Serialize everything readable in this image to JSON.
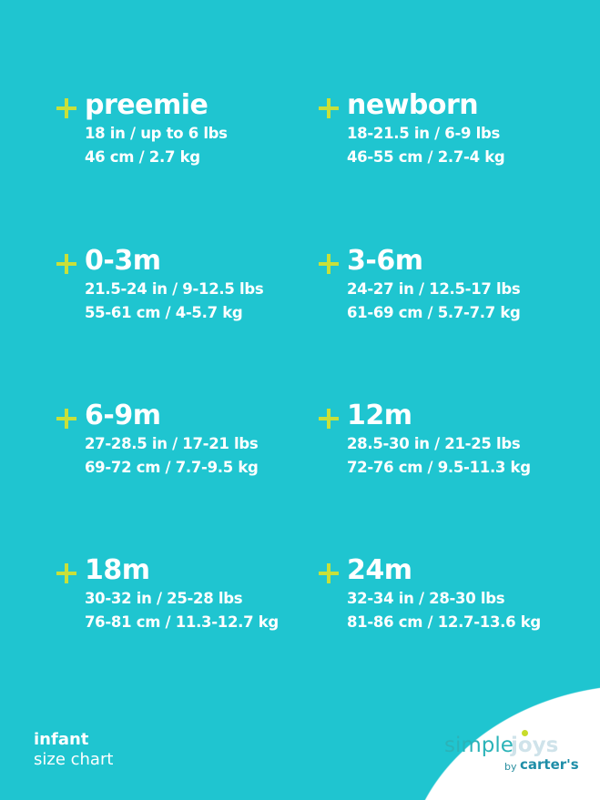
{
  "sizes": [
    {
      "label": "preemie",
      "imperial": "18 in / up to 6 lbs",
      "metric": "46 cm / 2.7 kg"
    },
    {
      "label": "newborn",
      "imperial": "18-21.5 in / 6-9 lbs",
      "metric": "46-55 cm / 2.7-4 kg"
    },
    {
      "label": "0-3m",
      "imperial": "21.5-24 in / 9-12.5 lbs",
      "metric": "55-61 cm / 4-5.7 kg"
    },
    {
      "label": "3-6m",
      "imperial": "24-27 in / 12.5-17 lbs",
      "metric": "61-69 cm / 5.7-7.7 kg"
    },
    {
      "label": "6-9m",
      "imperial": "27-28.5 in / 17-21 lbs",
      "metric": "69-72 cm / 7.7-9.5 kg"
    },
    {
      "label": "12m",
      "imperial": "28.5-30 in / 21-25 lbs",
      "metric": "72-76 cm / 9.5-11.3 kg"
    },
    {
      "label": "18m",
      "imperial": "30-32 in / 25-28 lbs",
      "metric": "76-81 cm / 11.3-12.7 kg"
    },
    {
      "label": "24m",
      "imperial": "32-34 in / 28-30 lbs",
      "metric": "81-86 cm / 12.7-13.6 kg"
    }
  ],
  "footer": {
    "line1": "infant",
    "line2": "size chart"
  },
  "logo": {
    "simple": "simple",
    "joys": "joys",
    "by": "by",
    "carters": "carter's"
  },
  "colors": {
    "background": "#1fc5d0",
    "plus": "#c8e03a",
    "text": "#ffffff"
  }
}
